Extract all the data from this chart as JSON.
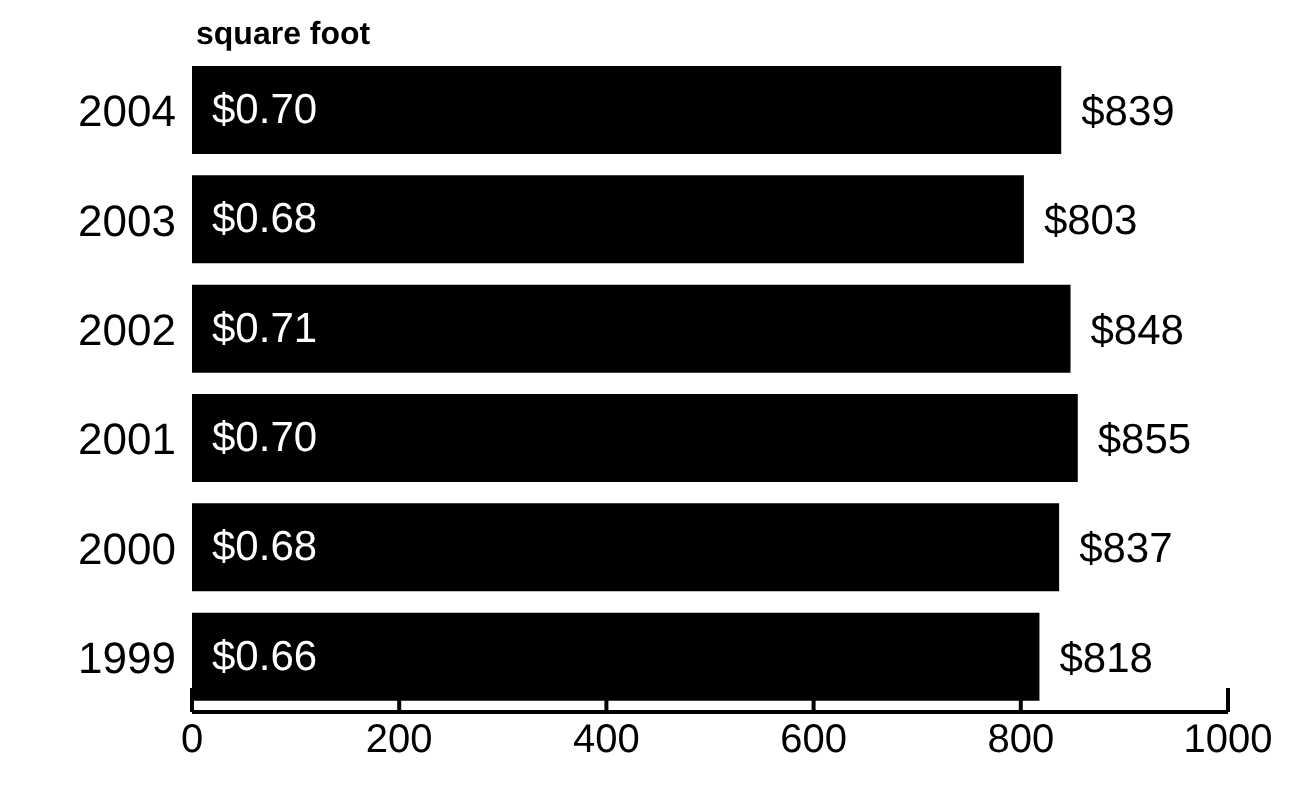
{
  "chart_data": {
    "type": "bar",
    "orientation": "horizontal",
    "title": "square foot",
    "categories": [
      "2004",
      "2003",
      "2002",
      "2001",
      "2000",
      "1999"
    ],
    "values": [
      839,
      803,
      848,
      855,
      837,
      818
    ],
    "value_labels": [
      "$839",
      "$803",
      "$848",
      "$855",
      "$837",
      "$818"
    ],
    "color": "#000000",
    "xlim": [
      0,
      1000
    ],
    "xticks": [
      0,
      200,
      400,
      600,
      800,
      1000
    ],
    "grid": false,
    "annotations": [
      {
        "text": "$0.70",
        "y": "2004"
      },
      {
        "text": "$0.68",
        "y": "2003"
      },
      {
        "text": "$0.71",
        "y": "2002"
      },
      {
        "text": "$0.70",
        "y": "2001"
      },
      {
        "text": "$0.68",
        "y": "2000"
      },
      {
        "text": "$0.66",
        "y": "1999"
      }
    ]
  }
}
